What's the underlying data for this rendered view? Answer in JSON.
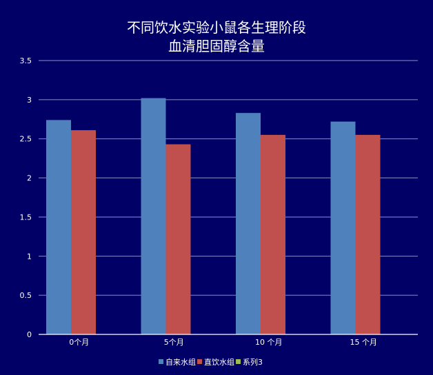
{
  "chart_data": {
    "type": "bar",
    "title_lines": [
      "不同饮水实验小鼠各生理阶段",
      "血清胆固醇含量"
    ],
    "categories": [
      "0个月",
      "5个月",
      "10 个月",
      "15 个月"
    ],
    "series": [
      {
        "name": "自来水组",
        "color": "#4f81bd",
        "values": [
          2.74,
          3.02,
          2.83,
          2.72
        ]
      },
      {
        "name": "直饮水组",
        "color": "#c0504d",
        "values": [
          2.61,
          2.43,
          2.55,
          2.55
        ]
      },
      {
        "name": "系列3",
        "color": "#9bbb59",
        "values": [
          null,
          null,
          null,
          null
        ]
      }
    ],
    "y_ticks": [
      "0",
      "0.5",
      "1",
      "1.5",
      "2",
      "2.5",
      "3",
      "3.5"
    ],
    "ylim": [
      0,
      3.5
    ],
    "grid": true,
    "legend_position": "bottom",
    "xlabel": "",
    "ylabel": ""
  }
}
